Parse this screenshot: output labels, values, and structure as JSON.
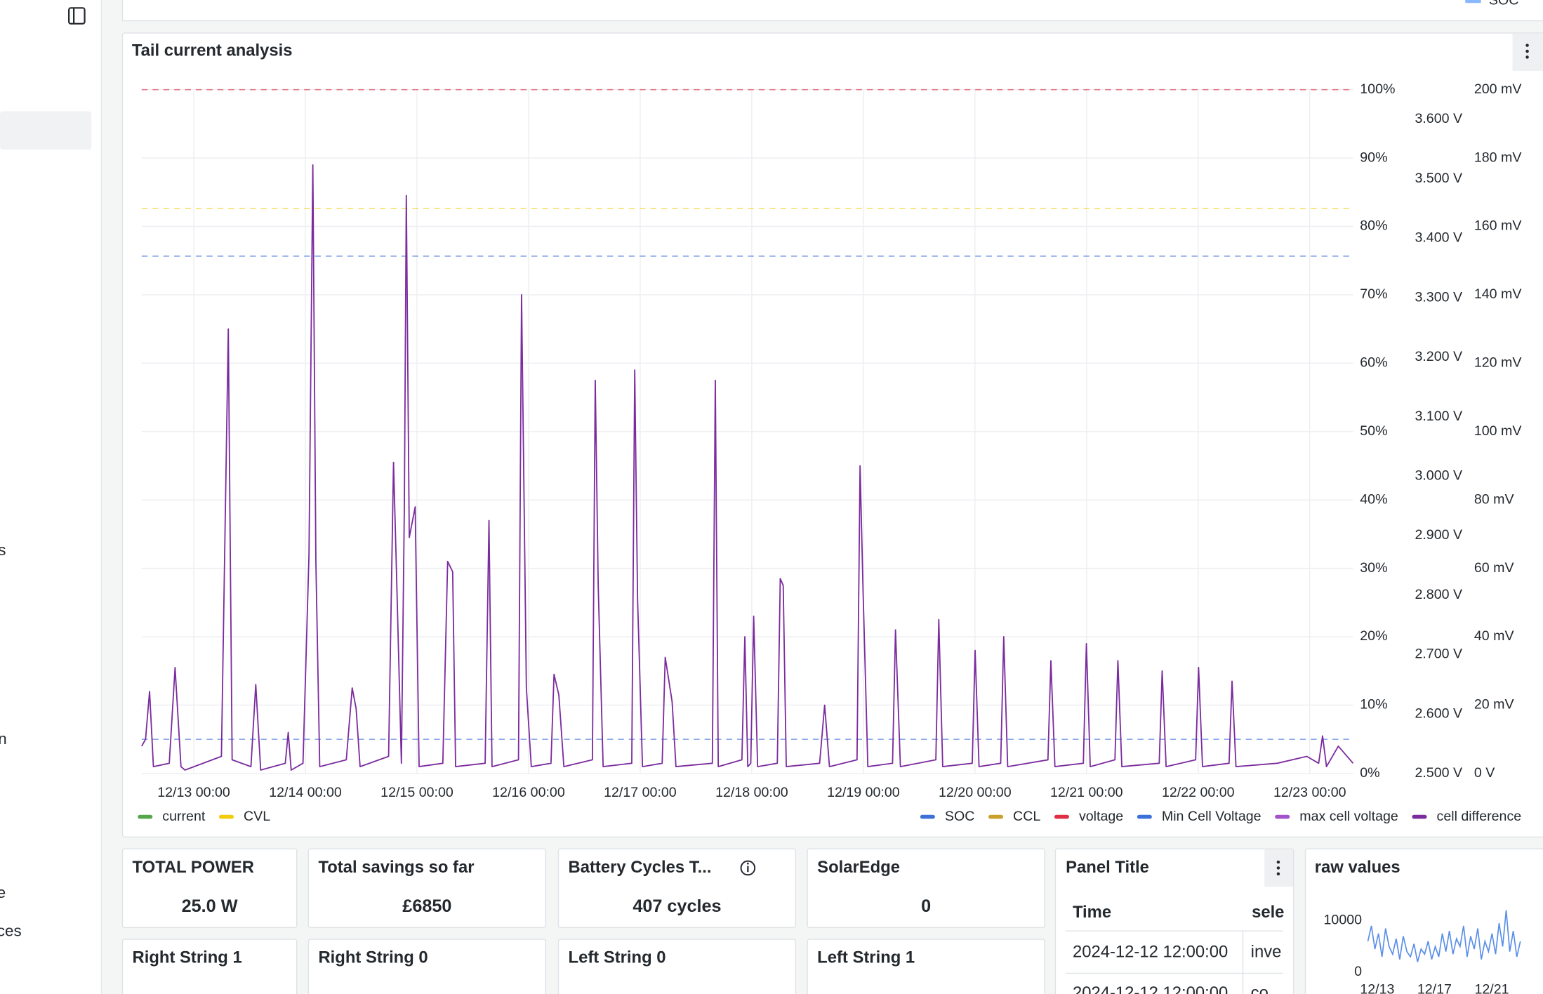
{
  "sidebar": {
    "items": [
      "s",
      "n",
      "e",
      "ces"
    ]
  },
  "top_panel": {
    "legend": "SOC"
  },
  "chart_data": {
    "type": "line",
    "title": "Tail current analysis",
    "xlim": [
      "12/12 12:48",
      "12/23 09:19"
    ],
    "xticks": [
      "12/13 00:00",
      "12/14 00:00",
      "12/15 00:00",
      "12/16 00:00",
      "12/17 00:00",
      "12/18 00:00",
      "12/19 00:00",
      "12/20 00:00",
      "12/21 00:00",
      "12/22 00:00",
      "12/23 00:00"
    ],
    "ylim": [
      0,
      100
    ],
    "yticks": [
      {
        "value": 0,
        "label": "0%"
      },
      {
        "value": 10,
        "label": "10%"
      },
      {
        "value": 20,
        "label": "20%"
      },
      {
        "value": 30,
        "label": "30%"
      },
      {
        "value": 40,
        "label": "40%"
      },
      {
        "value": 50,
        "label": "50%"
      },
      {
        "value": 60,
        "label": "60%"
      },
      {
        "value": 70,
        "label": "70%"
      },
      {
        "value": 80,
        "label": "80%"
      },
      {
        "value": 90,
        "label": "90%"
      },
      {
        "value": 100,
        "label": "100%"
      }
    ],
    "y2lim": [
      2.5,
      3.65
    ],
    "y2ticks": [
      {
        "value": 2.5,
        "label": "2.500 V"
      },
      {
        "value": 2.6,
        "label": "2.600 V"
      },
      {
        "value": 2.7,
        "label": "2.700 V"
      },
      {
        "value": 2.8,
        "label": "2.800 V"
      },
      {
        "value": 2.9,
        "label": "2.900 V"
      },
      {
        "value": 3.0,
        "label": "3.000 V"
      },
      {
        "value": 3.1,
        "label": "3.100 V"
      },
      {
        "value": 3.2,
        "label": "3.200 V"
      },
      {
        "value": 3.3,
        "label": "3.300 V"
      },
      {
        "value": 3.4,
        "label": "3.400 V"
      },
      {
        "value": 3.5,
        "label": "3.500 V"
      },
      {
        "value": 3.6,
        "label": "3.600 V"
      }
    ],
    "y3lim": [
      0,
      200
    ],
    "y3ticks": [
      {
        "value": 0,
        "label": "0 V"
      },
      {
        "value": 20,
        "label": "20 mV"
      },
      {
        "value": 40,
        "label": "40 mV"
      },
      {
        "value": 60,
        "label": "60 mV"
      },
      {
        "value": 80,
        "label": "80 mV"
      },
      {
        "value": 100,
        "label": "100 mV"
      },
      {
        "value": 120,
        "label": "120 mV"
      },
      {
        "value": 140,
        "label": "140 mV"
      },
      {
        "value": 160,
        "label": "160 mV"
      },
      {
        "value": 180,
        "label": "180 mV"
      },
      {
        "value": 200,
        "label": "200 mV"
      }
    ],
    "grid": true,
    "series": [
      {
        "name": "current",
        "color": "#56a64b",
        "legend": "bottom-left"
      },
      {
        "name": "CVL",
        "color": "#f2cc0c",
        "legend": "bottom-left",
        "axis": "y2",
        "level": 3.45
      },
      {
        "name": "SOC",
        "color": "#3d71d9",
        "legend": "bottom-right",
        "level": 5
      },
      {
        "name": "CCL",
        "color": "#c8a02a",
        "legend": "bottom-right"
      },
      {
        "name": "voltage",
        "color": "#e02f44",
        "legend": "bottom-right",
        "axis": "y2",
        "level": 3.65
      },
      {
        "name": "Min Cell Voltage",
        "color": "#3d71d9",
        "legend": "bottom-right",
        "axis": "y2",
        "level": 3.37
      },
      {
        "name": "max cell voltage",
        "color": "#a352cc",
        "legend": "bottom-right"
      },
      {
        "name": "cell difference",
        "color": "#7b2c9e",
        "legend": "bottom-right",
        "axis": "y3",
        "x": [
          "12/12 12:48",
          "12/12 13:38",
          "12/12 14:29",
          "12/12 15:19",
          "12/12 18:43",
          "12/12 19:59",
          "12/12 21:15",
          "12/12 22:06",
          "12/13 05:56",
          "12/13 07:25",
          "12/13 08:15",
          "12/13 12:17",
          "12/13 13:20",
          "12/13 14:23",
          "12/13 19:41",
          "12/13 20:19",
          "12/13 20:57",
          "12/13 23:29",
          "12/14 00:46",
          "12/14 01:36",
          "12/14 02:15",
          "12/14 03:05",
          "12/14 08:48",
          "12/14 10:04",
          "12/14 10:55",
          "12/14 11:46",
          "12/14 17:54",
          "12/14 18:58",
          "12/14 19:36",
          "12/14 20:39",
          "12/14 21:17",
          "12/14 21:43",
          "12/14 22:21",
          "12/14 23:37",
          "12/15 00:28",
          "12/15 05:33",
          "12/15 06:36",
          "12/15 07:40",
          "12/15 08:18",
          "12/15 14:39",
          "12/15 15:29",
          "12/15 16:08",
          "12/15 21:50",
          "12/15 22:29",
          "12/15 23:32",
          "12/16 00:35",
          "12/16 04:49",
          "12/16 05:28",
          "12/16 06:31",
          "12/16 07:35",
          "12/16 13:43",
          "12/16 14:21",
          "12/16 14:59",
          "12/16 16:02",
          "12/16 22:11",
          "12/16 22:49",
          "12/16 23:27",
          "12/17 00:30",
          "12/17 04:44",
          "12/17 05:23",
          "12/17 06:52",
          "12/17 07:42",
          "12/17 15:32",
          "12/17 16:10",
          "12/17 16:48",
          "12/17 21:53",
          "12/17 22:31",
          "12/17 23:09",
          "12/17 23:47",
          "12/18 00:25",
          "12/18 01:16",
          "12/18 05:30",
          "12/18 06:08",
          "12/18 06:46",
          "12/18 07:25",
          "12/18 14:36",
          "12/18 15:40",
          "12/18 16:43",
          "12/18 22:38",
          "12/18 23:17",
          "12/18 23:55",
          "12/19 00:58",
          "12/19 06:16",
          "12/19 06:54",
          "12/19 07:58",
          "12/19 15:35",
          "12/19 16:13",
          "12/19 17:04",
          "12/19 23:25",
          "12/20 00:02",
          "12/20 00:53",
          "12/20 05:32",
          "12/20 06:11",
          "12/20 07:02",
          "12/20 15:42",
          "12/20 16:20",
          "12/20 17:11",
          "12/20 23:19",
          "12/20 23:58",
          "12/21 00:48",
          "12/21 06:06",
          "12/21 06:44",
          "12/21 07:35",
          "12/21 15:37",
          "12/21 16:15",
          "12/21 17:06",
          "12/21 23:27",
          "12/22 00:05",
          "12/22 00:56",
          "12/22 06:39",
          "12/22 07:17",
          "12/22 08:08",
          "12/22 17:01",
          "12/22 23:22",
          "12/23 01:54",
          "12/23 02:45",
          "12/23 03:36",
          "12/23 06:08",
          "12/23 09:19"
        ],
        "values": [
          8,
          10,
          24,
          2,
          3,
          31,
          2,
          1,
          5,
          130,
          4,
          2,
          26,
          1,
          3,
          12,
          1,
          3,
          64,
          178,
          62,
          2,
          4,
          25,
          19,
          2,
          5,
          91,
          59,
          3,
          78,
          169,
          69,
          78,
          2,
          3,
          62,
          59,
          2,
          3,
          74,
          2,
          4,
          140,
          25,
          2,
          3,
          29,
          23,
          2,
          4,
          115,
          55,
          2,
          3,
          118,
          51,
          2,
          3,
          34,
          21,
          2,
          3,
          115,
          2,
          4,
          40,
          2,
          3,
          46,
          2,
          3,
          57,
          55,
          2,
          3,
          20,
          2,
          4,
          90,
          54,
          2,
          3,
          42,
          2,
          4,
          45,
          2,
          3,
          36,
          2,
          3,
          40,
          2,
          4,
          33,
          2,
          3,
          38,
          2,
          4,
          33,
          2,
          3,
          30,
          2,
          4,
          31,
          2,
          3,
          27,
          2,
          3,
          5,
          3,
          11,
          2,
          8,
          3
        ]
      }
    ]
  },
  "stats": [
    {
      "title": "TOTAL POWER",
      "value": "25.0 W",
      "color": "#56a64b"
    },
    {
      "title": "Total savings so far",
      "value": "£6850",
      "color": "#d4303e"
    },
    {
      "title": "Battery Cycles T...",
      "value": "407 cycles",
      "color": "#d4303e"
    },
    {
      "title": "SolarEdge",
      "value": "0",
      "color": "#56a64b"
    }
  ],
  "table_panel": {
    "title": "Panel Title",
    "header": [
      "Time",
      "sele"
    ],
    "rows": [
      [
        "2024-12-12 12:00:00",
        "inve"
      ],
      [
        "2024-12-12 12:00:00",
        "co"
      ]
    ]
  },
  "raw_values": {
    "type": "line",
    "title": "raw values",
    "color": "#5b8fe8",
    "ylim": [
      0,
      12000
    ],
    "yticks": [
      0,
      10000
    ],
    "xlim": [
      "12/12",
      "12/23"
    ],
    "xticks": [
      "12/13",
      "12/17",
      "12/21"
    ],
    "values": [
      6000,
      9000,
      4500,
      7500,
      3000,
      8500,
      5000,
      3500,
      6500,
      2500,
      7000,
      4000,
      3000,
      5500,
      2000,
      4500,
      3500,
      6000,
      2500,
      5000,
      3000,
      7500,
      4000,
      8000,
      3500,
      6500,
      5000,
      9000,
      3000,
      7000,
      4500,
      8500,
      2500,
      6000,
      4000,
      7500,
      3500,
      9500,
      5000,
      12000,
      4000,
      8000,
      3000,
      6000
    ]
  },
  "row2": [
    "Right String 1",
    "Right String 0",
    "Left String 0",
    "Left String 1"
  ]
}
